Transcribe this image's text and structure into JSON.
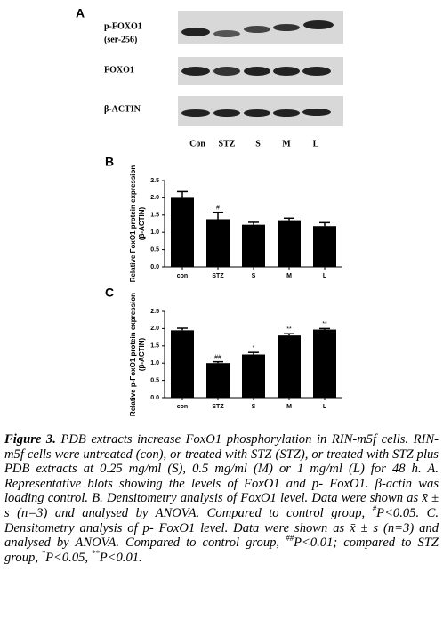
{
  "panel_a": {
    "label": "A",
    "row_labels": [
      "p-FOXO1",
      "(ser-256)",
      "FOXO1",
      "β-ACTIN"
    ],
    "lanes": [
      "Con",
      "STZ",
      "S",
      "M",
      "L"
    ]
  },
  "chart_data": [
    {
      "type": "bar",
      "label": "B",
      "ylabel": [
        "Relative FoxO1 protein expression",
        "(β-ACTIN)"
      ],
      "categories": [
        "con",
        "STZ",
        "S",
        "M",
        "L"
      ],
      "values": [
        2.0,
        1.38,
        1.22,
        1.35,
        1.18
      ],
      "errors": [
        0.18,
        0.2,
        0.07,
        0.06,
        0.1
      ],
      "annotations": [
        null,
        "#",
        null,
        null,
        null
      ],
      "color": "#000000",
      "ylim": [
        0,
        2.5
      ],
      "yticks": [
        {
          "value": 0,
          "label": "0.0"
        },
        0.5,
        {
          "value": 1,
          "label": "1.0"
        },
        1.5,
        {
          "value": 2,
          "label": "2.0"
        },
        2.5
      ]
    },
    {
      "type": "bar",
      "label": "C",
      "ylabel": [
        "Relative p-FoxO1 protein expression",
        "(β-ACTIN)"
      ],
      "categories": [
        "con",
        "STZ",
        "S",
        "M",
        "L"
      ],
      "values": [
        1.95,
        1.0,
        1.25,
        1.8,
        1.97
      ],
      "errors": [
        0.06,
        0.04,
        0.06,
        0.05,
        0.03
      ],
      "annotations": [
        null,
        "##",
        "*",
        "**",
        "**"
      ],
      "color": "#000000",
      "ylim": [
        0,
        2.5
      ],
      "yticks": [
        {
          "value": 0,
          "label": "0.0"
        },
        0.5,
        {
          "value": 1,
          "label": "1.0"
        },
        1.5,
        {
          "value": 2,
          "label": "2.0"
        },
        2.5
      ]
    }
  ],
  "caption": {
    "label": "Figure 3.",
    "text": [
      "PDB extracts increase FoxO1 phosphorylation in RIN-m5f cells. RIN-m5f cells were untreated (con), or treated with STZ (STZ), or treated with STZ plus PDB extracts at 0.25 mg/ml (S), 0.5 mg/ml (M) or 1 mg/ml (L) for 48 h. A. Representative blots showing the levels of FoxO1 and p- FoxO1. β-actin was loading control. B. Densitometry analysis of FoxO1 level. Data were shown as x̄ ± s (n=3) and analysed by ANOVA. Compared to control group, ",
      "P<0.05. C. Densitometry analysis of p- FoxO1 level. Data were shown as x̄ ± s (n=3) and analysed by ANOVA. Compared to control group, ",
      "P<0.01; compared to STZ group, ",
      "P<0.05, ",
      "P<0.01."
    ],
    "sup": [
      "#",
      "##",
      "*",
      "**"
    ]
  }
}
